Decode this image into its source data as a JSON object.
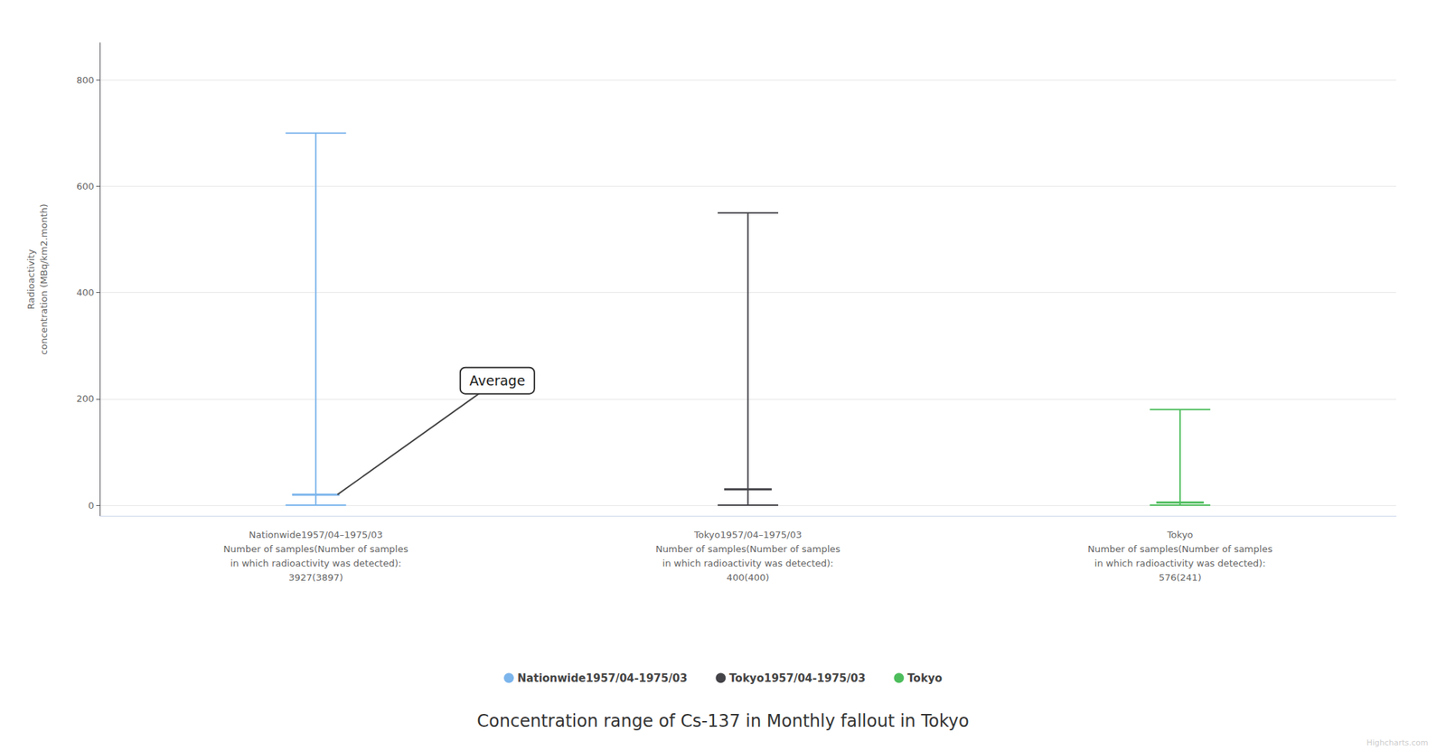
{
  "chart_data": {
    "type": "range",
    "title": "Concentration range of Cs-137 in Monthly fallout in Tokyo",
    "ylabel": "Radioactivity\nconcentration (MBq/km2.month)",
    "categories": [
      "Nationwide1957/04–1975/03\nNumber of samples(Number of samples\nin which radioactivity was detected):\n3927(3897)",
      "Tokyo1957/04–1975/03\nNumber of samples(Number of samples\nin which radioactivity was detected):\n400(400)",
      "Tokyo\nNumber of samples(Number of samples\nin which radioactivity was detected):\n576(241)"
    ],
    "series": [
      {
        "name": "Nationwide1957/04-1975/03",
        "color": "#7cb5ec",
        "min": 0,
        "avg": 20,
        "max": 700
      },
      {
        "name": "Tokyo1957/04-1975/03",
        "color": "#434348",
        "min": 0,
        "avg": 30,
        "max": 550
      },
      {
        "name": "Tokyo",
        "color": "#4dbd5c",
        "min": 0,
        "avg": 5,
        "max": 180
      }
    ],
    "ylim": [
      -20,
      870
    ],
    "yticks": [
      0,
      200,
      400,
      600,
      800
    ],
    "grid": true,
    "legend": "bottom",
    "annotation": "Average",
    "credit": "Highcharts.com"
  }
}
